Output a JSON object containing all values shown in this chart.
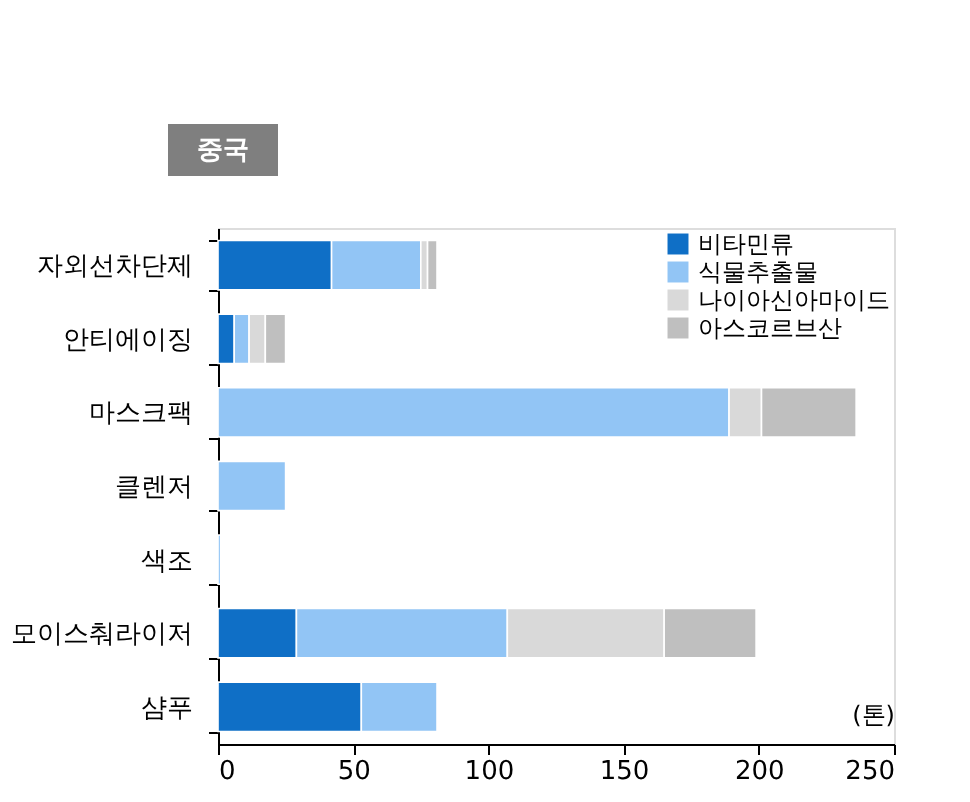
{
  "chart_data": {
    "type": "bar",
    "orientation": "horizontal",
    "stacked": true,
    "title": "중국",
    "xlabel": "(톤)",
    "categories": [
      "자외선차단제",
      "안티에이징",
      "마스크팩",
      "클렌저",
      "색조",
      "모이스춰라이저",
      "샴푸"
    ],
    "series": [
      {
        "name": "비타민류",
        "color": "#0f6fc6",
        "values": [
          42,
          6,
          null,
          null,
          null,
          29,
          53
        ]
      },
      {
        "name": "식물추출물",
        "color": "#92c5f5",
        "values": [
          33,
          5.5,
          189,
          25,
          1,
          78,
          28
        ]
      },
      {
        "name": "나이아신아마이드",
        "color": "#d9d9d9",
        "values": [
          2.5,
          6,
          12,
          null,
          null,
          58,
          null
        ]
      },
      {
        "name": "아스코르브산",
        "color": "#bfbfbf",
        "values": [
          3.5,
          7.5,
          35,
          null,
          null,
          34,
          null
        ]
      }
    ],
    "xlim": [
      0,
      250
    ],
    "xticks": [
      0,
      50,
      100,
      150,
      200,
      250
    ],
    "grid": false,
    "legend": "top right"
  }
}
